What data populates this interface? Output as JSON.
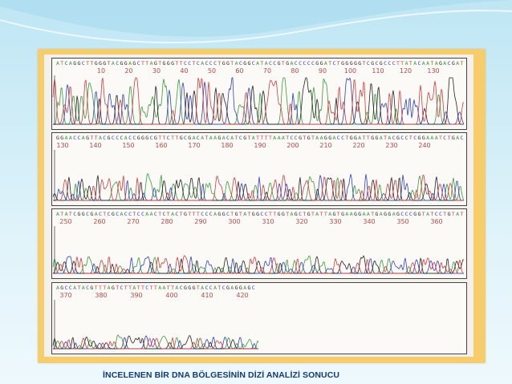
{
  "caption": "İNCELENEN BİR DNA BÖLGESİNİN DİZİ ANALİZİ SONUCU",
  "colors": {
    "A": "#3a9a3a",
    "C": "#2e3fbf",
    "G": "#222222",
    "T": "#d43a3a",
    "frame": "#f6cd6a",
    "tick": "#b84a4a"
  },
  "chart_data": [
    {
      "type": "line",
      "rows": [
        {
          "ticks": [
            10,
            20,
            30,
            40,
            50,
            60,
            70,
            80,
            90,
            100,
            110,
            120,
            130
          ]
        },
        {
          "ticks": [
            130,
            140,
            150,
            160,
            170,
            180,
            190,
            200,
            210,
            220,
            230,
            240
          ]
        },
        {
          "ticks": [
            250,
            260,
            270,
            280,
            290,
            300,
            310,
            320,
            330,
            340,
            350,
            360
          ]
        },
        {
          "ticks": [
            370,
            380,
            390,
            400,
            410,
            420
          ]
        }
      ]
    }
  ]
}
